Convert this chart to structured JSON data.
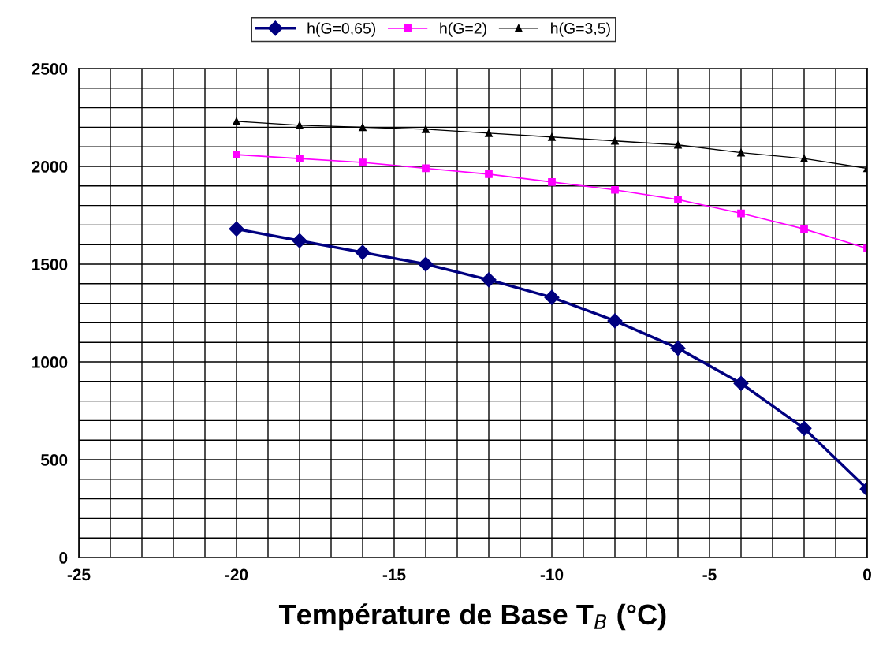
{
  "chart_data": {
    "type": "line",
    "xlabel": "Température de Base T$_{B}$ (°C)",
    "x": [
      -20,
      -18,
      -16,
      -14,
      -12,
      -10,
      -8,
      -6,
      -4,
      -2,
      0
    ],
    "series": [
      {
        "name": "h(G=0,65)",
        "color": "#000080",
        "marker": "diamond",
        "values": [
          1680,
          1620,
          1560,
          1500,
          1420,
          1330,
          1210,
          1070,
          890,
          660,
          350
        ]
      },
      {
        "name": "h(G=2)",
        "color": "#ff00ff",
        "marker": "square",
        "values": [
          2060,
          2040,
          2020,
          1990,
          1960,
          1920,
          1880,
          1830,
          1760,
          1680,
          1580
        ]
      },
      {
        "name": "h(G=3,5)",
        "color": "#000000",
        "marker": "triangle",
        "values": [
          2230,
          2210,
          2200,
          2190,
          2170,
          2150,
          2130,
          2110,
          2070,
          2040,
          1990
        ]
      }
    ],
    "xlim": [
      -25,
      0
    ],
    "ylim": [
      0,
      2500
    ],
    "xticks": [
      -25,
      {
        "value": -24,
        "label": null
      },
      {
        "value": -23,
        "label": null
      },
      {
        "value": -22,
        "label": null
      },
      {
        "value": -21,
        "label": null
      },
      -20,
      {
        "value": -19,
        "label": null
      },
      {
        "value": -18,
        "label": null
      },
      {
        "value": -17,
        "label": null
      },
      {
        "value": -16,
        "label": null
      },
      -15,
      {
        "value": -14,
        "label": null
      },
      {
        "value": -13,
        "label": null
      },
      {
        "value": -12,
        "label": null
      },
      {
        "value": -11,
        "label": null
      },
      -10,
      {
        "value": -9,
        "label": null
      },
      {
        "value": -8,
        "label": null
      },
      {
        "value": -7,
        "label": null
      },
      {
        "value": -6,
        "label": null
      },
      -5,
      {
        "value": -4,
        "label": null
      },
      {
        "value": -3,
        "label": null
      },
      {
        "value": -2,
        "label": null
      },
      {
        "value": -1,
        "label": null
      },
      0
    ],
    "yticks": [
      0,
      {
        "value": 100,
        "label": null
      },
      {
        "value": 200,
        "label": null
      },
      {
        "value": 300,
        "label": null
      },
      {
        "value": 400,
        "label": null
      },
      500,
      {
        "value": 600,
        "label": null
      },
      {
        "value": 700,
        "label": null
      },
      {
        "value": 800,
        "label": null
      },
      {
        "value": 900,
        "label": null
      },
      1000,
      {
        "value": 1100,
        "label": null
      },
      {
        "value": 1200,
        "label": null
      },
      {
        "value": 1300,
        "label": null
      },
      {
        "value": 1400,
        "label": null
      },
      1500,
      {
        "value": 1600,
        "label": null
      },
      {
        "value": 1700,
        "label": null
      },
      {
        "value": 1800,
        "label": null
      },
      {
        "value": 1900,
        "label": null
      },
      2000,
      {
        "value": 2100,
        "label": null
      },
      {
        "value": 2200,
        "label": null
      },
      {
        "value": 2300,
        "label": null
      },
      {
        "value": 2400,
        "label": null
      },
      2500
    ],
    "grid": true,
    "legend": "top",
    "line_style": "solid"
  }
}
